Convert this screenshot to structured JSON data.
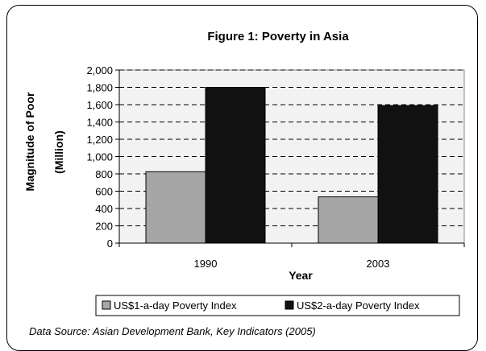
{
  "chart_data": {
    "type": "bar",
    "title": "Figure 1: Poverty in Asia",
    "xlabel": "Year",
    "ylabel_line1": "Magnitude of Poor",
    "ylabel_line2": "(Million)",
    "categories": [
      "1990",
      "2003"
    ],
    "series": [
      {
        "name": "US$1-a-day Poverty Index",
        "color": "#a6a6a6",
        "values": [
          825,
          535
        ]
      },
      {
        "name": "US$2-a-day Poverty Index",
        "color": "#111111",
        "values": [
          1800,
          1590
        ]
      }
    ],
    "ylim": [
      0,
      2000
    ],
    "yticks": [
      "0",
      "200",
      "400",
      "600",
      "800",
      "1,000",
      "1,200",
      "1,400",
      "1,600",
      "1,800",
      "2,000"
    ],
    "grid": true,
    "legend_position": "bottom",
    "source": "Data Source: Asian Development Bank, Key Indicators (2005)"
  }
}
